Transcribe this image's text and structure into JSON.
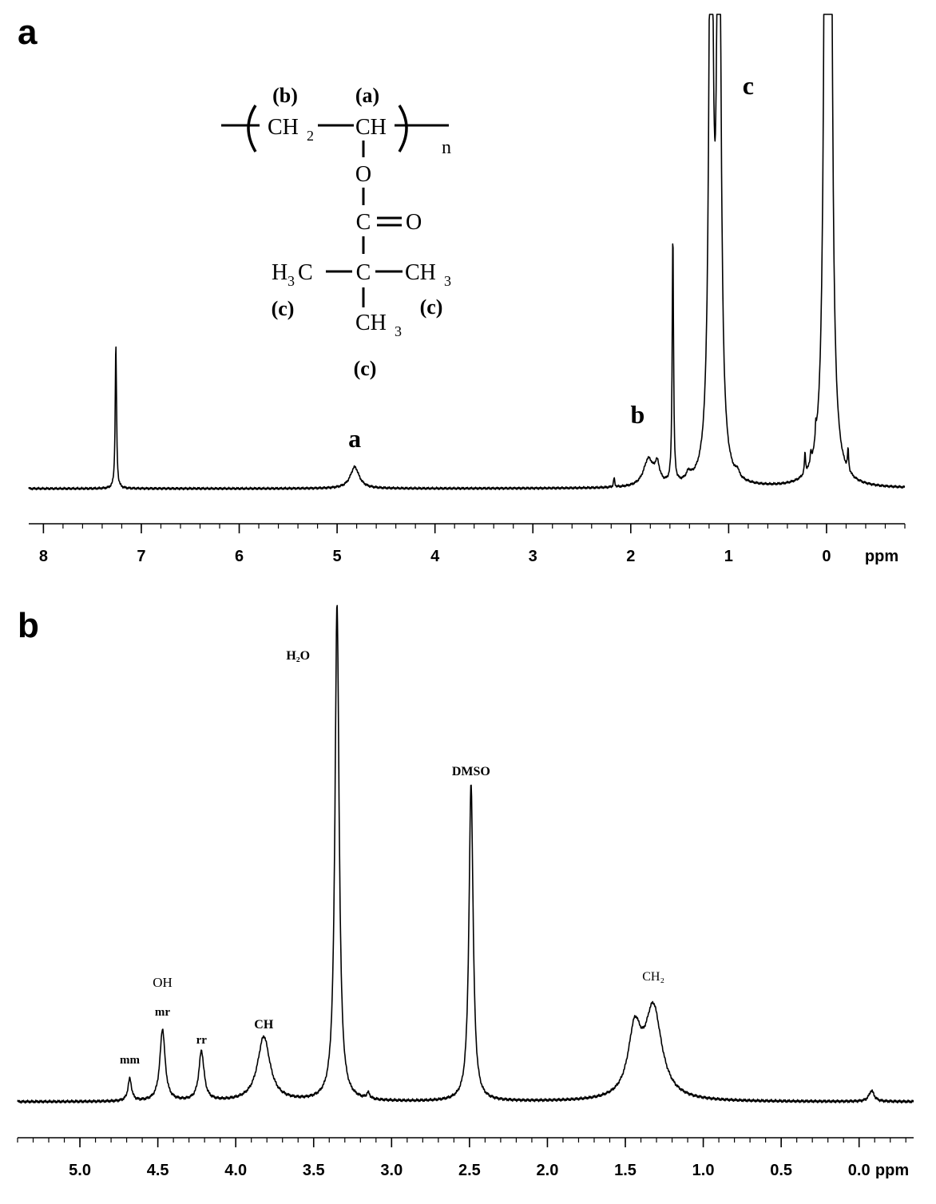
{
  "chart_data": [
    {
      "panel": "a",
      "type": "line",
      "xlabel": "ppm",
      "xlim": [
        8.15,
        -0.8
      ],
      "x_reversed": true,
      "x_ticks": [
        "8",
        "7",
        "6",
        "5",
        "4",
        "3",
        "2",
        "1",
        "0"
      ],
      "x_tick_values": [
        8,
        7,
        6,
        5,
        4,
        3,
        2,
        1,
        0
      ],
      "series": [
        {
          "peaks": [
            {
              "ppm": 7.26,
              "height": 0.35,
              "width": 0.008
            },
            {
              "ppm": 4.82,
              "height": 0.052,
              "width": 0.055
            },
            {
              "ppm": 1.82,
              "height": 0.065,
              "width": 0.06
            },
            {
              "ppm": 1.73,
              "height": 0.045,
              "width": 0.03
            },
            {
              "ppm": 1.57,
              "height": 0.6,
              "width": 0.008
            },
            {
              "ppm": 1.41,
              "height": 0.018,
              "width": 0.03
            },
            {
              "ppm": 1.18,
              "height": 1.8,
              "width": 0.022
            },
            {
              "ppm": 1.1,
              "height": 1.8,
              "width": 0.022
            },
            {
              "ppm": 0.91,
              "height": 0.015,
              "width": 0.02
            },
            {
              "ppm": 2.17,
              "height": 0.022,
              "width": 0.007
            },
            {
              "ppm": 0.22,
              "height": 0.05,
              "width": 0.007
            },
            {
              "ppm": 0.16,
              "height": 0.03,
              "width": 0.007
            },
            {
              "ppm": 0.11,
              "height": 0.04,
              "width": 0.007
            },
            {
              "ppm": 0.0,
              "height": 3.0,
              "width": 0.018
            },
            {
              "ppm": -0.03,
              "height": 3.0,
              "width": 0.018
            },
            {
              "ppm": -0.22,
              "height": 0.05,
              "width": 0.007
            }
          ]
        }
      ],
      "peak_labels": [
        {
          "text": "a",
          "ppm": 4.82
        },
        {
          "text": "b",
          "ppm": 1.93
        },
        {
          "text": "c",
          "ppm": 0.8
        }
      ],
      "structure": {
        "group_labels": [
          "(b)",
          "(a)",
          "(c)",
          "(c)",
          "(c)"
        ],
        "atoms": [
          "CH",
          "2",
          "CH",
          "O",
          "C",
          "O",
          "H",
          "3",
          "C",
          "C",
          "CH",
          "3",
          "CH",
          "3"
        ],
        "repeat_subscript": "n"
      }
    },
    {
      "panel": "b",
      "type": "line",
      "xlabel": "ppm",
      "xlim": [
        5.4,
        -0.35
      ],
      "x_reversed": true,
      "x_ticks": [
        "5.0",
        "4.5",
        "4.0",
        "3.5",
        "3.0",
        "2.5",
        "2.0",
        "1.5",
        "1.0",
        "0.5",
        "0.0"
      ],
      "x_tick_values": [
        5.0,
        4.5,
        4.0,
        3.5,
        3.0,
        2.5,
        2.0,
        1.5,
        1.0,
        0.5,
        0.0
      ],
      "series": [
        {
          "peaks": [
            {
              "ppm": 4.68,
              "height": 0.045,
              "width": 0.014
            },
            {
              "ppm": 4.47,
              "height": 0.145,
              "width": 0.02
            },
            {
              "ppm": 4.22,
              "height": 0.1,
              "width": 0.02
            },
            {
              "ppm": 3.82,
              "height": 0.13,
              "width": 0.048
            },
            {
              "ppm": 3.35,
              "height": 1.0,
              "width": 0.016
            },
            {
              "ppm": 3.15,
              "height": 0.012,
              "width": 0.012
            },
            {
              "ppm": 2.49,
              "height": 0.64,
              "width": 0.016
            },
            {
              "ppm": 1.44,
              "height": 0.13,
              "width": 0.05
            },
            {
              "ppm": 1.32,
              "height": 0.18,
              "width": 0.065
            },
            {
              "ppm": -0.08,
              "height": 0.022,
              "width": 0.02
            }
          ]
        }
      ],
      "peak_labels": [
        {
          "text": "mm",
          "ppm": 4.68
        },
        {
          "text": "OH",
          "ppm": 4.47
        },
        {
          "text": "mr",
          "ppm": 4.47
        },
        {
          "text": "rr",
          "ppm": 4.22
        },
        {
          "text": "CH",
          "ppm": 3.82
        },
        {
          "text": "H₂O",
          "ppm": 3.6
        },
        {
          "text": "DMSO",
          "ppm": 2.49
        },
        {
          "text": "CH₂",
          "ppm": 1.32
        }
      ]
    }
  ]
}
